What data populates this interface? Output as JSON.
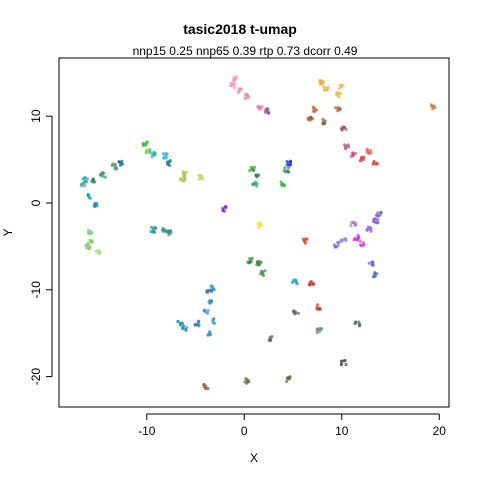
{
  "chart_data": {
    "type": "scatter",
    "title": "tasic2018 t-umap",
    "subtitle": "nnp15 0.25 nnp65 0.39 rtp 0.73 dcorr 0.49",
    "xlabel": "X",
    "ylabel": "Y",
    "xlim": [
      -19.0,
      21.0
    ],
    "ylim": [
      -23.5,
      16.7
    ],
    "xticks": [
      -10,
      0,
      10,
      20
    ],
    "yticks": [
      -20,
      -10,
      0,
      10
    ],
    "grid": false,
    "legend": "none",
    "clusters": [
      {
        "x": -0.9,
        "y": 14.3,
        "color": "#f29ab2"
      },
      {
        "x": -1.2,
        "y": 13.5,
        "color": "#f29ab2"
      },
      {
        "x": -0.4,
        "y": 13.0,
        "color": "#f08fb0"
      },
      {
        "x": 0.3,
        "y": 12.3,
        "color": "#ea82a6"
      },
      {
        "x": 1.6,
        "y": 11.0,
        "color": "#e57a9c"
      },
      {
        "x": 2.3,
        "y": 10.6,
        "color": "#8a4a8a"
      },
      {
        "x": 8.0,
        "y": 14.0,
        "color": "#f2a33a"
      },
      {
        "x": 8.4,
        "y": 13.2,
        "color": "#f0b040"
      },
      {
        "x": 9.7,
        "y": 12.4,
        "color": "#d4c24a"
      },
      {
        "x": 10.0,
        "y": 13.3,
        "color": "#e8c060"
      },
      {
        "x": 7.3,
        "y": 10.8,
        "color": "#c9643a"
      },
      {
        "x": 6.8,
        "y": 9.8,
        "color": "#a05a3a"
      },
      {
        "x": 8.1,
        "y": 9.4,
        "color": "#8a5a3a"
      },
      {
        "x": 9.6,
        "y": 10.9,
        "color": "#b06a3a"
      },
      {
        "x": 10.2,
        "y": 8.5,
        "color": "#9e4e5a"
      },
      {
        "x": 10.5,
        "y": 6.5,
        "color": "#b05a8a"
      },
      {
        "x": 11.2,
        "y": 5.5,
        "color": "#c9507a"
      },
      {
        "x": 12.1,
        "y": 5.0,
        "color": "#e04040"
      },
      {
        "x": 12.8,
        "y": 6.0,
        "color": "#e06060"
      },
      {
        "x": 13.4,
        "y": 4.6,
        "color": "#e24030"
      },
      {
        "x": 19.4,
        "y": 11.1,
        "color": "#c97a3a"
      },
      {
        "x": -16.3,
        "y": 2.7,
        "color": "#1ea8a8"
      },
      {
        "x": -15.5,
        "y": 2.5,
        "color": "#2e8c6e"
      },
      {
        "x": -14.5,
        "y": 3.2,
        "color": "#3a8e6a"
      },
      {
        "x": -13.3,
        "y": 4.2,
        "color": "#4a8a7a"
      },
      {
        "x": -12.6,
        "y": 4.6,
        "color": "#1e6a8a"
      },
      {
        "x": -15.8,
        "y": 0.8,
        "color": "#1aa2b0"
      },
      {
        "x": -15.3,
        "y": -0.2,
        "color": "#168aa8"
      },
      {
        "x": -16.5,
        "y": 2.1,
        "color": "#55b090"
      },
      {
        "x": -10.1,
        "y": 6.8,
        "color": "#3ab02a"
      },
      {
        "x": -9.9,
        "y": 6.0,
        "color": "#56d050"
      },
      {
        "x": -9.2,
        "y": 5.6,
        "color": "#2aa8c8"
      },
      {
        "x": -8.1,
        "y": 5.4,
        "color": "#2ab0d0"
      },
      {
        "x": -6.0,
        "y": 3.3,
        "color": "#a8c83a"
      },
      {
        "x": -6.3,
        "y": 2.7,
        "color": "#b0ba52"
      },
      {
        "x": -4.5,
        "y": 3.0,
        "color": "#c8d060"
      },
      {
        "x": -7.8,
        "y": 4.6,
        "color": "#2a7a8a"
      },
      {
        "x": 0.8,
        "y": 3.9,
        "color": "#3aa03a"
      },
      {
        "x": 1.4,
        "y": 3.0,
        "color": "#2a8a5a"
      },
      {
        "x": 1.1,
        "y": 2.2,
        "color": "#3aa06a"
      },
      {
        "x": 4.0,
        "y": 2.2,
        "color": "#2ab83a"
      },
      {
        "x": 4.3,
        "y": 3.8,
        "color": "#3a8a5a"
      },
      {
        "x": 4.6,
        "y": 4.6,
        "color": "#1a2ae0"
      },
      {
        "x": -2.0,
        "y": -0.7,
        "color": "#7a2ad0"
      },
      {
        "x": 1.6,
        "y": -2.6,
        "color": "#e8e82a"
      },
      {
        "x": 6.2,
        "y": -4.4,
        "color": "#e04a2a"
      },
      {
        "x": -15.8,
        "y": -3.3,
        "color": "#8aca8a"
      },
      {
        "x": -16.0,
        "y": -5.0,
        "color": "#7ac87a"
      },
      {
        "x": -15.0,
        "y": -5.7,
        "color": "#a8e070"
      },
      {
        "x": -15.8,
        "y": -4.5,
        "color": "#8ac860"
      },
      {
        "x": -9.3,
        "y": -3.1,
        "color": "#1a8a8a"
      },
      {
        "x": -8.2,
        "y": -3.2,
        "color": "#2a9a9a"
      },
      {
        "x": -7.6,
        "y": -3.4,
        "color": "#2a8a8a"
      },
      {
        "x": 0.6,
        "y": -6.6,
        "color": "#2a8a3a"
      },
      {
        "x": 1.5,
        "y": -6.9,
        "color": "#3a7a3a"
      },
      {
        "x": 1.9,
        "y": -8.1,
        "color": "#4a8a4a"
      },
      {
        "x": 5.2,
        "y": -9.1,
        "color": "#1aa8a8"
      },
      {
        "x": 6.9,
        "y": -9.2,
        "color": "#d0302a"
      },
      {
        "x": 7.6,
        "y": -12.0,
        "color": "#c83a2a"
      },
      {
        "x": 9.5,
        "y": -4.8,
        "color": "#7a6ad8"
      },
      {
        "x": 10.2,
        "y": -4.4,
        "color": "#8a8ae0"
      },
      {
        "x": 11.5,
        "y": -4.0,
        "color": "#d02ad0"
      },
      {
        "x": 12.1,
        "y": -4.7,
        "color": "#e040e0"
      },
      {
        "x": 12.8,
        "y": -3.0,
        "color": "#9a5ae0"
      },
      {
        "x": 13.5,
        "y": -2.1,
        "color": "#7a4ad0"
      },
      {
        "x": 13.8,
        "y": -1.3,
        "color": "#7a5ac8"
      },
      {
        "x": 11.2,
        "y": -2.4,
        "color": "#b070d0"
      },
      {
        "x": 13.0,
        "y": -7.0,
        "color": "#6a6ad0"
      },
      {
        "x": 13.4,
        "y": -8.3,
        "color": "#5a6ac0"
      },
      {
        "x": -3.6,
        "y": -10.3,
        "color": "#3a7ab0"
      },
      {
        "x": -3.2,
        "y": -9.8,
        "color": "#3a8ac8"
      },
      {
        "x": -3.6,
        "y": -11.4,
        "color": "#3a8ac0"
      },
      {
        "x": -3.9,
        "y": -12.6,
        "color": "#4a9ad0"
      },
      {
        "x": -3.2,
        "y": -13.6,
        "color": "#4aa0d8"
      },
      {
        "x": -3.7,
        "y": -15.1,
        "color": "#3a90c8"
      },
      {
        "x": -4.8,
        "y": -13.9,
        "color": "#2a7ab0"
      },
      {
        "x": -6.6,
        "y": -13.8,
        "color": "#1a9ab0"
      },
      {
        "x": -6.1,
        "y": -14.4,
        "color": "#2a8ac0"
      },
      {
        "x": 2.8,
        "y": -15.6,
        "color": "#6a6a6a"
      },
      {
        "x": 5.3,
        "y": -12.7,
        "color": "#5a6a5a"
      },
      {
        "x": 7.7,
        "y": -14.7,
        "color": "#6a8a6a"
      },
      {
        "x": 11.6,
        "y": -13.9,
        "color": "#4a6a5a"
      },
      {
        "x": 10.2,
        "y": -18.4,
        "color": "#4a4a4a"
      },
      {
        "x": 4.5,
        "y": -20.3,
        "color": "#5a6a4a"
      },
      {
        "x": 0.3,
        "y": -20.5,
        "color": "#6a6a5a"
      },
      {
        "x": -3.9,
        "y": -21.2,
        "color": "#8a5a5a"
      }
    ]
  }
}
